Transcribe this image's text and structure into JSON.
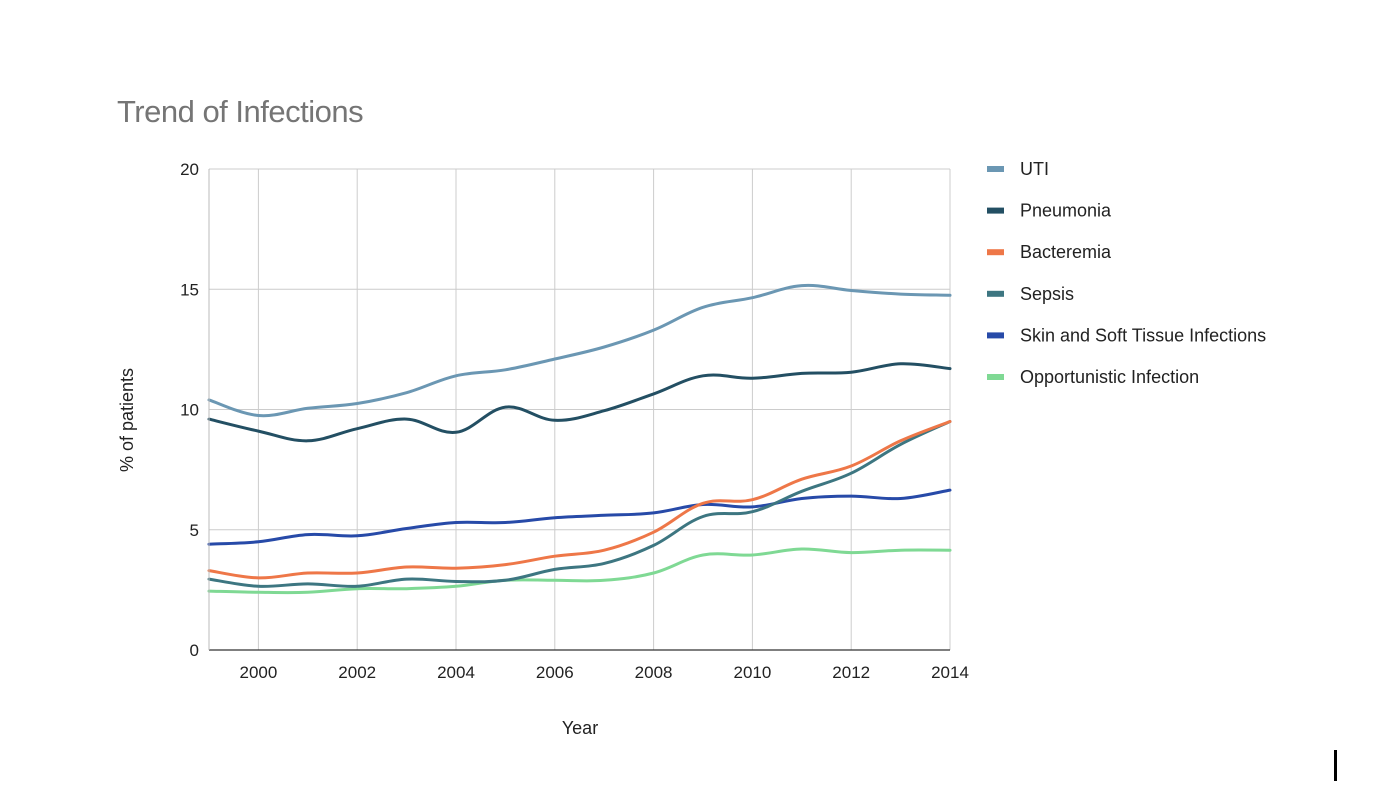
{
  "chart_data": {
    "type": "line",
    "title": "Trend of Infections",
    "xlabel": "Year",
    "ylabel": "% of patients",
    "xlim": [
      1999,
      2014
    ],
    "ylim": [
      0,
      20
    ],
    "x_ticks": [
      2000,
      2002,
      2004,
      2006,
      2008,
      2010,
      2012,
      2014
    ],
    "y_ticks": [
      0,
      5,
      10,
      15,
      20
    ],
    "grid": true,
    "legend_position": "right",
    "x": [
      1999,
      2000,
      2001,
      2002,
      2003,
      2004,
      2005,
      2006,
      2007,
      2008,
      2009,
      2010,
      2011,
      2012,
      2013,
      2014
    ],
    "series": [
      {
        "name": "UTI",
        "color": "#6b97b3",
        "values": [
          10.4,
          9.75,
          10.05,
          10.25,
          10.7,
          11.4,
          11.65,
          12.1,
          12.6,
          13.3,
          14.25,
          14.65,
          15.15,
          14.95,
          14.8,
          14.75
        ]
      },
      {
        "name": "Pneumonia",
        "color": "#234f63",
        "values": [
          9.6,
          9.1,
          8.7,
          9.2,
          9.6,
          9.05,
          10.1,
          9.55,
          9.95,
          10.65,
          11.4,
          11.3,
          11.5,
          11.55,
          11.9,
          11.7
        ]
      },
      {
        "name": "Bacteremia",
        "color": "#ee7748",
        "values": [
          3.3,
          3.0,
          3.2,
          3.2,
          3.45,
          3.4,
          3.55,
          3.9,
          4.15,
          4.9,
          6.1,
          6.25,
          7.1,
          7.65,
          8.7,
          9.5
        ]
      },
      {
        "name": "Sepsis",
        "color": "#3d7681",
        "values": [
          2.95,
          2.65,
          2.75,
          2.65,
          2.95,
          2.85,
          2.9,
          3.35,
          3.6,
          4.35,
          5.55,
          5.75,
          6.6,
          7.35,
          8.55,
          9.5
        ]
      },
      {
        "name": "Skin and Soft Tissue Infections",
        "color": "#274aa8",
        "values": [
          4.4,
          4.5,
          4.8,
          4.75,
          5.05,
          5.3,
          5.3,
          5.5,
          5.6,
          5.7,
          6.05,
          5.95,
          6.3,
          6.4,
          6.3,
          6.65
        ]
      },
      {
        "name": "Opportunistic Infection",
        "color": "#7fd994",
        "values": [
          2.45,
          2.4,
          2.4,
          2.55,
          2.55,
          2.65,
          2.9,
          2.9,
          2.9,
          3.2,
          3.95,
          3.95,
          4.2,
          4.05,
          4.15,
          4.15
        ]
      }
    ]
  }
}
